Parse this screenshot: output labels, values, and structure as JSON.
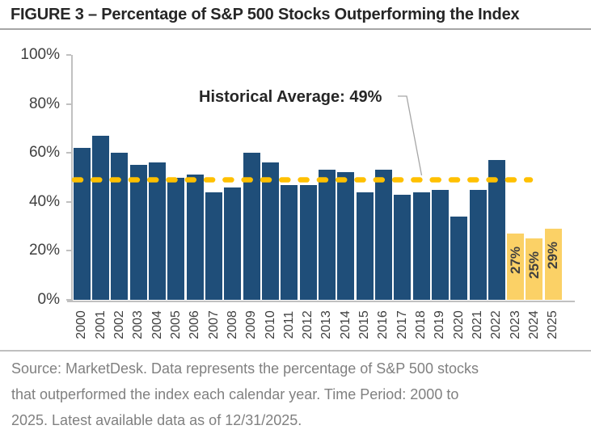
{
  "title": "FIGURE 3 – Percentage of S&P 500 Stocks Outperforming the Index",
  "footer": {
    "lines": [
      "Source: MarketDesk. Data represents the percentage of S&P 500 stocks",
      "that outperformed the index each calendar year. Time Period: 2000 to",
      "2025. Latest available data as of 12/31/2025."
    ]
  },
  "chart_data": {
    "type": "bar",
    "title": "FIGURE 3 – Percentage of S&P 500 Stocks Outperforming the Index",
    "categories": [
      "2000",
      "2001",
      "2002",
      "2003",
      "2004",
      "2005",
      "2006",
      "2007",
      "2008",
      "2009",
      "2010",
      "2011",
      "2012",
      "2013",
      "2014",
      "2015",
      "2016",
      "2017",
      "2018",
      "2019",
      "2020",
      "2021",
      "2022",
      "2023",
      "2024",
      "2025"
    ],
    "values": [
      62,
      67,
      60,
      55,
      56,
      50,
      51,
      44,
      46,
      60,
      56,
      47,
      47,
      53,
      52,
      44,
      53,
      43,
      44,
      45,
      34,
      45,
      57,
      27,
      25,
      29
    ],
    "highlight_categories": [
      "2023",
      "2024",
      "2025"
    ],
    "bar_labels": {
      "2023": "27%",
      "2024": "25%",
      "2025": "29%"
    },
    "average_line": {
      "value": 49,
      "label": "Historical Average: 49%"
    },
    "ylabel_ticks": [
      "0%",
      "20%",
      "40%",
      "60%",
      "80%",
      "100%"
    ],
    "ylim": [
      0,
      100
    ],
    "xlabel": "",
    "ylabel": "",
    "grid": false,
    "legend": false,
    "colors": {
      "bar_blue": "#1f4e79",
      "bar_yellow": "#fbd166",
      "dash_gold": "#ffc000",
      "axis_gray": "#c0c0c0",
      "tick_label_gray": "#404040",
      "annotation_dark": "#262626",
      "callout_gray": "#a6a6a6",
      "footer_gray": "#808080"
    }
  }
}
